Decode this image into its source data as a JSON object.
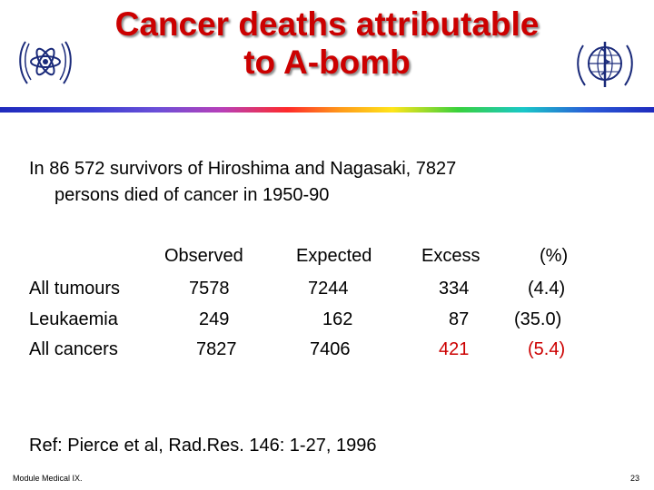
{
  "title": {
    "line1": "Cancer deaths attributable",
    "line2": "to A-bomb"
  },
  "logos": {
    "left": "iaea-logo-icon",
    "right": "who-logo-icon"
  },
  "intro": {
    "line1": "In 86 572 survivors of  Hiroshima and Nagasaki,  7827",
    "line2": "persons died of cancer in 1950-90"
  },
  "table": {
    "headers": [
      "Observed",
      "Expected",
      "Excess",
      "(%)"
    ],
    "rows": [
      {
        "label": "All tumours",
        "observed": "7578",
        "expected": "7244",
        "excess": "334",
        "percent": "(4.4)"
      },
      {
        "label": "Leukaemia",
        "observed": "249",
        "expected": "162",
        "excess": "87",
        "percent": "(35.0)"
      },
      {
        "label": "All cancers",
        "observed": "7827",
        "expected": "7406",
        "excess": "421",
        "percent": "(5.4)"
      }
    ],
    "highlight_color": "#cc0000"
  },
  "reference": "Ref: Pierce et al, Rad.Res. 146: 1-27, 1996",
  "footer": {
    "left": "Module Medical IX.",
    "page": "23"
  },
  "colors": {
    "title": "#cc0000",
    "text": "#000000",
    "background": "#ffffff"
  }
}
